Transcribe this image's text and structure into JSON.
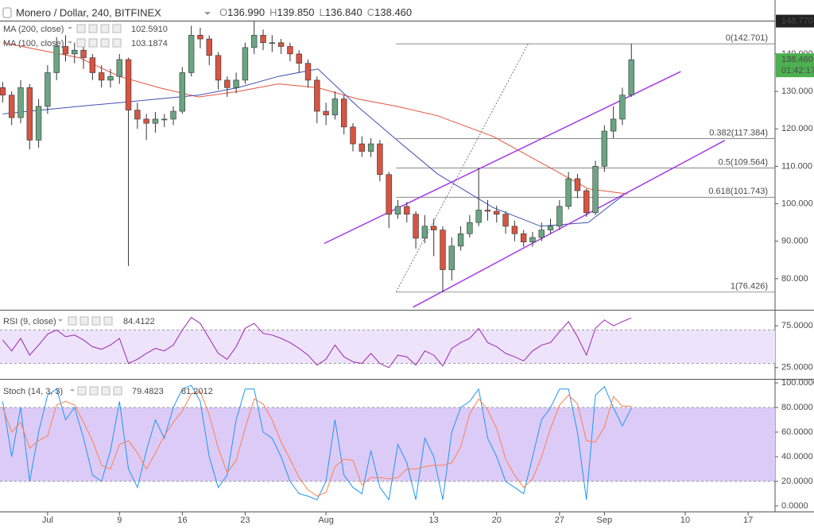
{
  "chart_data": [
    {
      "type": "candlestick",
      "title": "Monero / Dollar, 240, BITFINEX",
      "ohlc": [
        {
          "key": "O",
          "text": "136.990"
        },
        {
          "key": "H",
          "text": "139.850"
        },
        {
          "key": "L",
          "text": "136.840"
        },
        {
          "key": "C",
          "text": "138.460"
        }
      ],
      "up_color": "#6ba583",
      "down_color": "#d75442",
      "x": [
        -5,
        -4,
        -3,
        -2,
        -1,
        0,
        1,
        2,
        3,
        4,
        5,
        6,
        7,
        8,
        9,
        10,
        11,
        12,
        13,
        14,
        15,
        16,
        17,
        18,
        19,
        20,
        21,
        22,
        23,
        24,
        25,
        26,
        27,
        28,
        29,
        30,
        31,
        32,
        33,
        34,
        35,
        36,
        37,
        38,
        39,
        40,
        41,
        42,
        43,
        44,
        45,
        46,
        47,
        48,
        49,
        50,
        51,
        52,
        53,
        54,
        55,
        56,
        57,
        58,
        59,
        60,
        61,
        62,
        63,
        64,
        65
      ],
      "open": [
        131,
        129,
        123,
        131,
        117,
        126,
        135,
        142,
        140,
        141,
        139,
        135,
        133,
        134,
        138.5,
        125,
        122.6,
        121.5,
        122.6,
        122.6,
        124.7,
        135,
        145,
        144,
        139.6,
        133,
        131,
        133,
        141.7,
        145,
        143,
        143,
        142,
        140,
        137.5,
        133,
        124.7,
        123.7,
        128,
        120.5,
        116,
        114,
        116,
        107.8,
        97.2,
        99.3,
        97.2,
        90.8,
        94,
        93,
        82.4,
        88.7,
        92,
        95,
        98.3,
        98,
        97.2,
        94,
        92,
        89.8,
        91,
        93,
        94,
        99.3,
        106.7,
        103.5,
        97.6,
        110,
        119.4,
        122.6,
        129
      ],
      "high": [
        132.5,
        130,
        133,
        132,
        128,
        137,
        144.5,
        145,
        143,
        142.5,
        140,
        137,
        136,
        140,
        139,
        127,
        124,
        124.5,
        124,
        126,
        136.5,
        147.5,
        147,
        145,
        140.5,
        134,
        135,
        143,
        148.77,
        146.5,
        145,
        144,
        143,
        141,
        138.5,
        134,
        127,
        130,
        129,
        121.5,
        118,
        117.5,
        117,
        108.5,
        101,
        100.5,
        98,
        97,
        96,
        94,
        91,
        94,
        97,
        109.5,
        101,
        99.5,
        98,
        95.5,
        93,
        92.5,
        95,
        96,
        101,
        108.5,
        108,
        104,
        111.5,
        121,
        126,
        131,
        142.7
      ],
      "low": [
        127,
        121,
        121.5,
        114.5,
        115,
        124,
        133,
        138,
        137.5,
        136,
        133,
        131,
        131,
        132,
        83.4,
        120,
        117,
        119,
        120.5,
        121,
        124,
        134,
        141.5,
        137,
        130.5,
        128.5,
        129.5,
        132,
        140,
        141,
        140.5,
        140,
        138,
        135,
        131,
        121.5,
        121,
        122.5,
        118.5,
        114,
        112.5,
        112.5,
        106,
        93.5,
        96,
        95,
        88,
        89.5,
        86,
        76.426,
        79.5,
        87.5,
        91,
        94,
        95.5,
        95,
        92,
        90,
        88.5,
        88.5,
        90,
        92,
        93,
        98.5,
        101.5,
        96.5,
        97,
        108.5,
        117.5,
        121,
        128.5
      ],
      "close": [
        129,
        123,
        131,
        117,
        126,
        135,
        142,
        140,
        141,
        139,
        135,
        133,
        134,
        138.5,
        125,
        122.6,
        121.5,
        122.6,
        122.6,
        124.7,
        135,
        145,
        144,
        139.6,
        133,
        131,
        133,
        141.7,
        145,
        143,
        143,
        142,
        140,
        137.5,
        133,
        124.7,
        123.7,
        128,
        120.5,
        116,
        114,
        116,
        107.8,
        97.2,
        99.3,
        97.2,
        90.8,
        94,
        93,
        82.4,
        88.7,
        92,
        95,
        98.3,
        98,
        97.2,
        94,
        92,
        89.8,
        91,
        93,
        94,
        99.3,
        106.7,
        103.5,
        97.6,
        110,
        119.4,
        122.6,
        129,
        138.46
      ],
      "series": [
        {
          "name": "MA (200, close)",
          "color": "#e5533d",
          "last_label": "102.5910",
          "x": [
            -5,
            3.5,
            8,
            12.4,
            16.8,
            21.2,
            25.7,
            30.1,
            34.5,
            38.9,
            43.4,
            49.6,
            54.9,
            60.2,
            64.6
          ],
          "values": [
            143,
            139,
            134,
            131,
            128.5,
            130,
            132,
            131,
            128,
            126,
            123.5,
            118,
            111,
            104,
            102.591
          ]
        },
        {
          "name": "MA (100, close)",
          "color": "#3f51b5",
          "last_label": "103.1874",
          "x": [
            -5,
            3.5,
            8,
            12.4,
            16.8,
            21.2,
            25.7,
            30.1,
            34.5,
            38.9,
            43.4,
            49.6,
            54.9,
            60.2,
            64.6
          ],
          "values": [
            124,
            126,
            127,
            128,
            129,
            131,
            134,
            136,
            126,
            117,
            108,
            99,
            94,
            95,
            103.1874
          ]
        }
      ],
      "channel_color": "#a335ee",
      "channels": [
        {
          "x": [
            30.8,
            70.5
          ],
          "values": [
            89.4,
            135.3
          ]
        },
        {
          "x": [
            40.7,
            75.4
          ],
          "values": [
            72.4,
            116.9
          ]
        }
      ],
      "fib_trend": {
        "x": [
          38.8,
          53.5
        ],
        "values": [
          76.426,
          142.701
        ]
      },
      "fib": [
        {
          "value": 142.701,
          "label": "0(142.701)"
        },
        {
          "value": 117.384,
          "label": "0.382(117.384)"
        },
        {
          "value": 109.564,
          "label": "0.5(109.564)"
        },
        {
          "value": 101.743,
          "label": "0.618(101.743)"
        },
        {
          "value": 76.426,
          "label": "1(76.426)"
        }
      ],
      "high_line": {
        "value": 148.77,
        "label": "148.770"
      },
      "last": {
        "value": 138.46,
        "label": "138.460",
        "countdown": "01:42:17",
        "color": "#4caf50"
      },
      "xlim": [
        -5.3,
        81
      ],
      "xticks": [
        {
          "value": 0,
          "label": "Jul"
        },
        {
          "value": 8,
          "label": "9"
        },
        {
          "value": 15,
          "label": "16"
        },
        {
          "value": 22,
          "label": "23"
        },
        {
          "value": 31,
          "label": "Aug"
        },
        {
          "value": 43,
          "label": "13"
        },
        {
          "value": 50,
          "label": "20"
        },
        {
          "value": 57,
          "label": "27"
        },
        {
          "value": 62,
          "label": "Sep"
        },
        {
          "value": 71,
          "label": "10"
        },
        {
          "value": 78,
          "label": "17"
        }
      ],
      "ylim": [
        71.7,
        154.4
      ],
      "yticks": [
        {
          "value": 80,
          "label": "80.000"
        },
        {
          "value": 90,
          "label": "90.000"
        },
        {
          "value": 100,
          "label": "100.000"
        },
        {
          "value": 110,
          "label": "110.000"
        },
        {
          "value": 120,
          "label": "120.000"
        },
        {
          "value": 130,
          "label": "130.000"
        },
        {
          "value": 140,
          "label": "140.000"
        }
      ]
    },
    {
      "type": "line",
      "title": "RSI (9, close)",
      "series": [
        {
          "color": "#9c27b0",
          "last_label": "84.4122",
          "values": [
            58,
            45,
            60,
            40,
            52,
            65,
            70,
            62,
            64,
            58,
            50,
            47,
            52,
            60,
            30,
            35,
            42,
            48,
            45,
            52,
            70,
            85,
            78,
            60,
            42,
            35,
            50,
            72,
            78,
            66,
            64,
            60,
            55,
            48,
            40,
            28,
            35,
            52,
            38,
            32,
            30,
            42,
            30,
            25,
            40,
            38,
            28,
            45,
            40,
            27,
            48,
            55,
            60,
            72,
            55,
            50,
            42,
            38,
            33,
            45,
            52,
            55,
            68,
            80,
            62,
            40,
            72,
            82,
            75,
            80,
            84.4122
          ]
        }
      ],
      "band": [
        30,
        70
      ],
      "band_color": "#ede3fb",
      "ylim": [
        12.5,
        92.3
      ],
      "yticks": [
        {
          "value": 75,
          "label": "75.0000"
        },
        {
          "value": 25,
          "label": "25.0000"
        }
      ]
    },
    {
      "type": "line",
      "title": "Stoch (14, 3, 3)",
      "series": [
        {
          "color": "#2196f3",
          "last_label": "79.4823",
          "values": [
            85,
            40,
            80,
            20,
            60,
            90,
            95,
            70,
            80,
            55,
            25,
            20,
            45,
            85,
            30,
            15,
            45,
            70,
            55,
            80,
            95,
            98,
            85,
            40,
            15,
            25,
            70,
            95,
            95,
            60,
            55,
            40,
            20,
            10,
            8,
            5,
            20,
            70,
            25,
            15,
            10,
            45,
            15,
            5,
            50,
            35,
            5,
            55,
            40,
            5,
            60,
            80,
            85,
            95,
            55,
            40,
            20,
            15,
            10,
            40,
            70,
            80,
            95,
            95,
            60,
            5,
            90,
            97,
            80,
            65,
            79.4823
          ]
        },
        {
          "color": "#ff7f50",
          "last_label": "81.2012",
          "values": [
            80,
            60,
            68,
            47,
            53,
            57,
            82,
            85,
            82,
            68,
            53,
            33,
            30,
            50,
            53,
            43,
            30,
            43,
            57,
            68,
            77,
            91,
            93,
            74,
            47,
            27,
            37,
            63,
            87,
            83,
            70,
            52,
            38,
            23,
            13,
            8,
            11,
            32,
            38,
            37,
            17,
            23,
            23,
            22,
            23,
            30,
            30,
            32,
            33,
            33,
            35,
            48,
            75,
            87,
            78,
            63,
            38,
            25,
            15,
            22,
            40,
            63,
            82,
            90,
            83,
            53,
            52,
            64,
            89,
            81,
            81.2012
          ]
        }
      ],
      "band": [
        20,
        80
      ],
      "band_color": "#dccbf7",
      "ylim": [
        -3.9,
        102.6
      ],
      "yticks": [
        {
          "value": 0,
          "label": "0.0000"
        },
        {
          "value": 20,
          "label": "20.0000"
        },
        {
          "value": 40,
          "label": "40.0000"
        },
        {
          "value": 60,
          "label": "60.0000"
        },
        {
          "value": 80,
          "label": "80.0000"
        },
        {
          "value": 100,
          "label": "100.0000"
        }
      ]
    }
  ]
}
